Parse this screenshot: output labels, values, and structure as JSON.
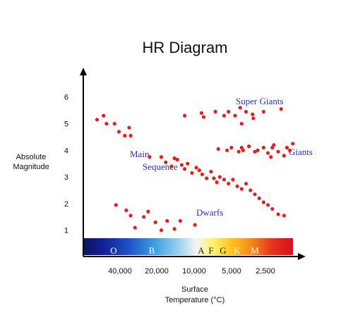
{
  "chart_data": {
    "type": "scatter",
    "title": "HR Diagram",
    "ylabel": [
      "Absolute",
      "Magnitude"
    ],
    "xlabel": [
      "Surface",
      "Temperature (°C)"
    ],
    "y_ticks": [
      1,
      2,
      3,
      4,
      5,
      6
    ],
    "x_ticks": [
      "40,000",
      "20,000",
      "10,000",
      "5,000",
      "2,500"
    ],
    "spectral_classes": [
      "O",
      "B",
      "A",
      "F",
      "G",
      "K",
      "M"
    ],
    "regions": {
      "super_giants": "Super Giants",
      "giants": "Giants",
      "main": "Main",
      "sequence": "Sequence",
      "dwarfs": "Dwarfs"
    },
    "point_color": "#e81c1c",
    "points": [
      [
        -6.55,
        5.15
      ],
      [
        -6.1,
        5.3
      ],
      [
        -5.9,
        5.0
      ],
      [
        -5.35,
        5.0
      ],
      [
        -5.05,
        4.7
      ],
      [
        -4.65,
        4.55
      ],
      [
        -4.35,
        4.85
      ],
      [
        -4.25,
        4.55
      ],
      [
        -0.55,
        5.3
      ],
      [
        0.6,
        5.4
      ],
      [
        0.75,
        5.25
      ],
      [
        1.55,
        5.45
      ],
      [
        2.15,
        5.3
      ],
      [
        2.45,
        5.45
      ],
      [
        2.9,
        5.3
      ],
      [
        3.25,
        5.6
      ],
      [
        3.35,
        5.0
      ],
      [
        3.65,
        5.45
      ],
      [
        4.1,
        5.35
      ],
      [
        4.15,
        5.2
      ],
      [
        4.85,
        5.45
      ],
      [
        6.05,
        5.55
      ],
      [
        1.75,
        4.05
      ],
      [
        2.35,
        4.0
      ],
      [
        2.65,
        4.1
      ],
      [
        3.15,
        3.95
      ],
      [
        3.35,
        4.1
      ],
      [
        3.45,
        4.0
      ],
      [
        3.85,
        4.15
      ],
      [
        4.25,
        3.95
      ],
      [
        4.45,
        4.0
      ],
      [
        4.85,
        4.1
      ],
      [
        5.15,
        3.9
      ],
      [
        5.35,
        3.75
      ],
      [
        5.45,
        4.1
      ],
      [
        5.55,
        4.2
      ],
      [
        5.85,
        3.95
      ],
      [
        6.25,
        3.8
      ],
      [
        6.45,
        4.1
      ],
      [
        6.65,
        4.0
      ],
      [
        6.85,
        4.25
      ],
      [
        -2.95,
        3.75
      ],
      [
        -2.15,
        3.75
      ],
      [
        -1.85,
        3.55
      ],
      [
        -1.45,
        3.4
      ],
      [
        -1.25,
        3.7
      ],
      [
        -1.05,
        3.65
      ],
      [
        -0.75,
        3.45
      ],
      [
        -0.55,
        3.3
      ],
      [
        -0.35,
        3.5
      ],
      [
        -0.05,
        3.15
      ],
      [
        0.25,
        3.35
      ],
      [
        0.45,
        3.25
      ],
      [
        0.65,
        3.1
      ],
      [
        0.95,
        2.95
      ],
      [
        1.25,
        3.2
      ],
      [
        1.45,
        2.95
      ],
      [
        1.65,
        2.8
      ],
      [
        1.85,
        3.0
      ],
      [
        2.15,
        2.9
      ],
      [
        2.45,
        2.75
      ],
      [
        2.75,
        2.9
      ],
      [
        3.05,
        2.65
      ],
      [
        3.35,
        2.55
      ],
      [
        3.65,
        2.75
      ],
      [
        3.95,
        2.5
      ],
      [
        4.25,
        2.35
      ],
      [
        4.55,
        2.2
      ],
      [
        4.85,
        2.05
      ],
      [
        5.15,
        1.95
      ],
      [
        5.45,
        1.8
      ],
      [
        5.85,
        1.6
      ],
      [
        6.25,
        1.55
      ],
      [
        -5.25,
        1.95
      ],
      [
        -4.55,
        1.75
      ],
      [
        -4.25,
        1.55
      ],
      [
        -3.95,
        1.1
      ],
      [
        -3.35,
        1.5
      ],
      [
        -3.05,
        1.7
      ],
      [
        -2.55,
        1.3
      ],
      [
        -2.15,
        1.0
      ],
      [
        -1.75,
        1.35
      ],
      [
        -1.25,
        1.05
      ],
      [
        -0.85,
        1.35
      ],
      [
        0.15,
        1.2
      ]
    ]
  }
}
